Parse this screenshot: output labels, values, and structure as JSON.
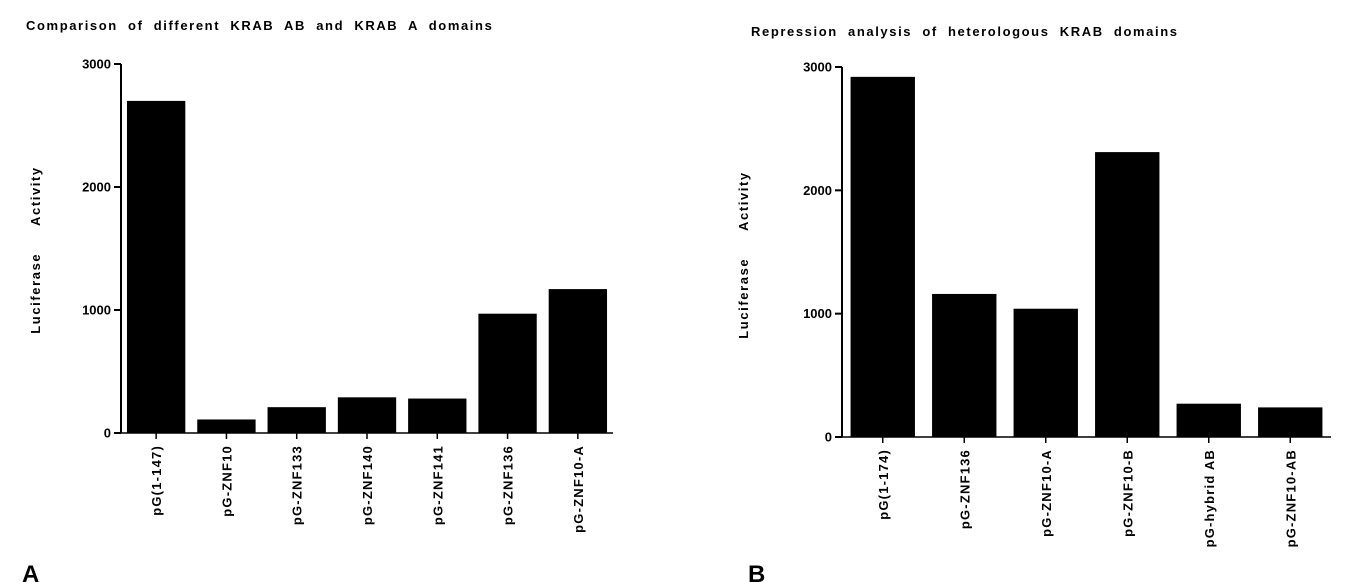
{
  "chart_data": [
    {
      "type": "bar",
      "panel_label": "A",
      "title": "Comparison of different KRAB AB and KRAB A domains",
      "ylabel": "Luciferase Activity",
      "xlabel": "",
      "ylim": [
        0,
        3000
      ],
      "yticks": [
        "0",
        "1000",
        "2000",
        "3000"
      ],
      "categories": [
        "pG(1-147)",
        "pG-ZNF10",
        "pG-ZNF133",
        "pG-ZNF140",
        "pG-ZNF141",
        "pG-ZNF136",
        "pG-ZNF10-A"
      ],
      "values": [
        2700,
        110,
        210,
        290,
        280,
        970,
        1170
      ],
      "bar_color": "#000000",
      "grid": false,
      "legend": "none"
    },
    {
      "type": "bar",
      "panel_label": "B",
      "title": "Repression analysis of heterologous KRAB domains",
      "ylabel": "Luciferase Activity",
      "xlabel": "",
      "ylim": [
        0,
        3000
      ],
      "yticks": [
        "0",
        "1000",
        "2000",
        "3000"
      ],
      "categories": [
        "pG(1-174)",
        "pG-ZNF136",
        "pG-ZNF10-A",
        "pG-ZNF10-B",
        "pG-hybrid AB",
        "pG-ZNF10-AB"
      ],
      "values": [
        2920,
        1160,
        1040,
        2310,
        270,
        240
      ],
      "bar_color": "#000000",
      "grid": false,
      "legend": "none"
    }
  ]
}
